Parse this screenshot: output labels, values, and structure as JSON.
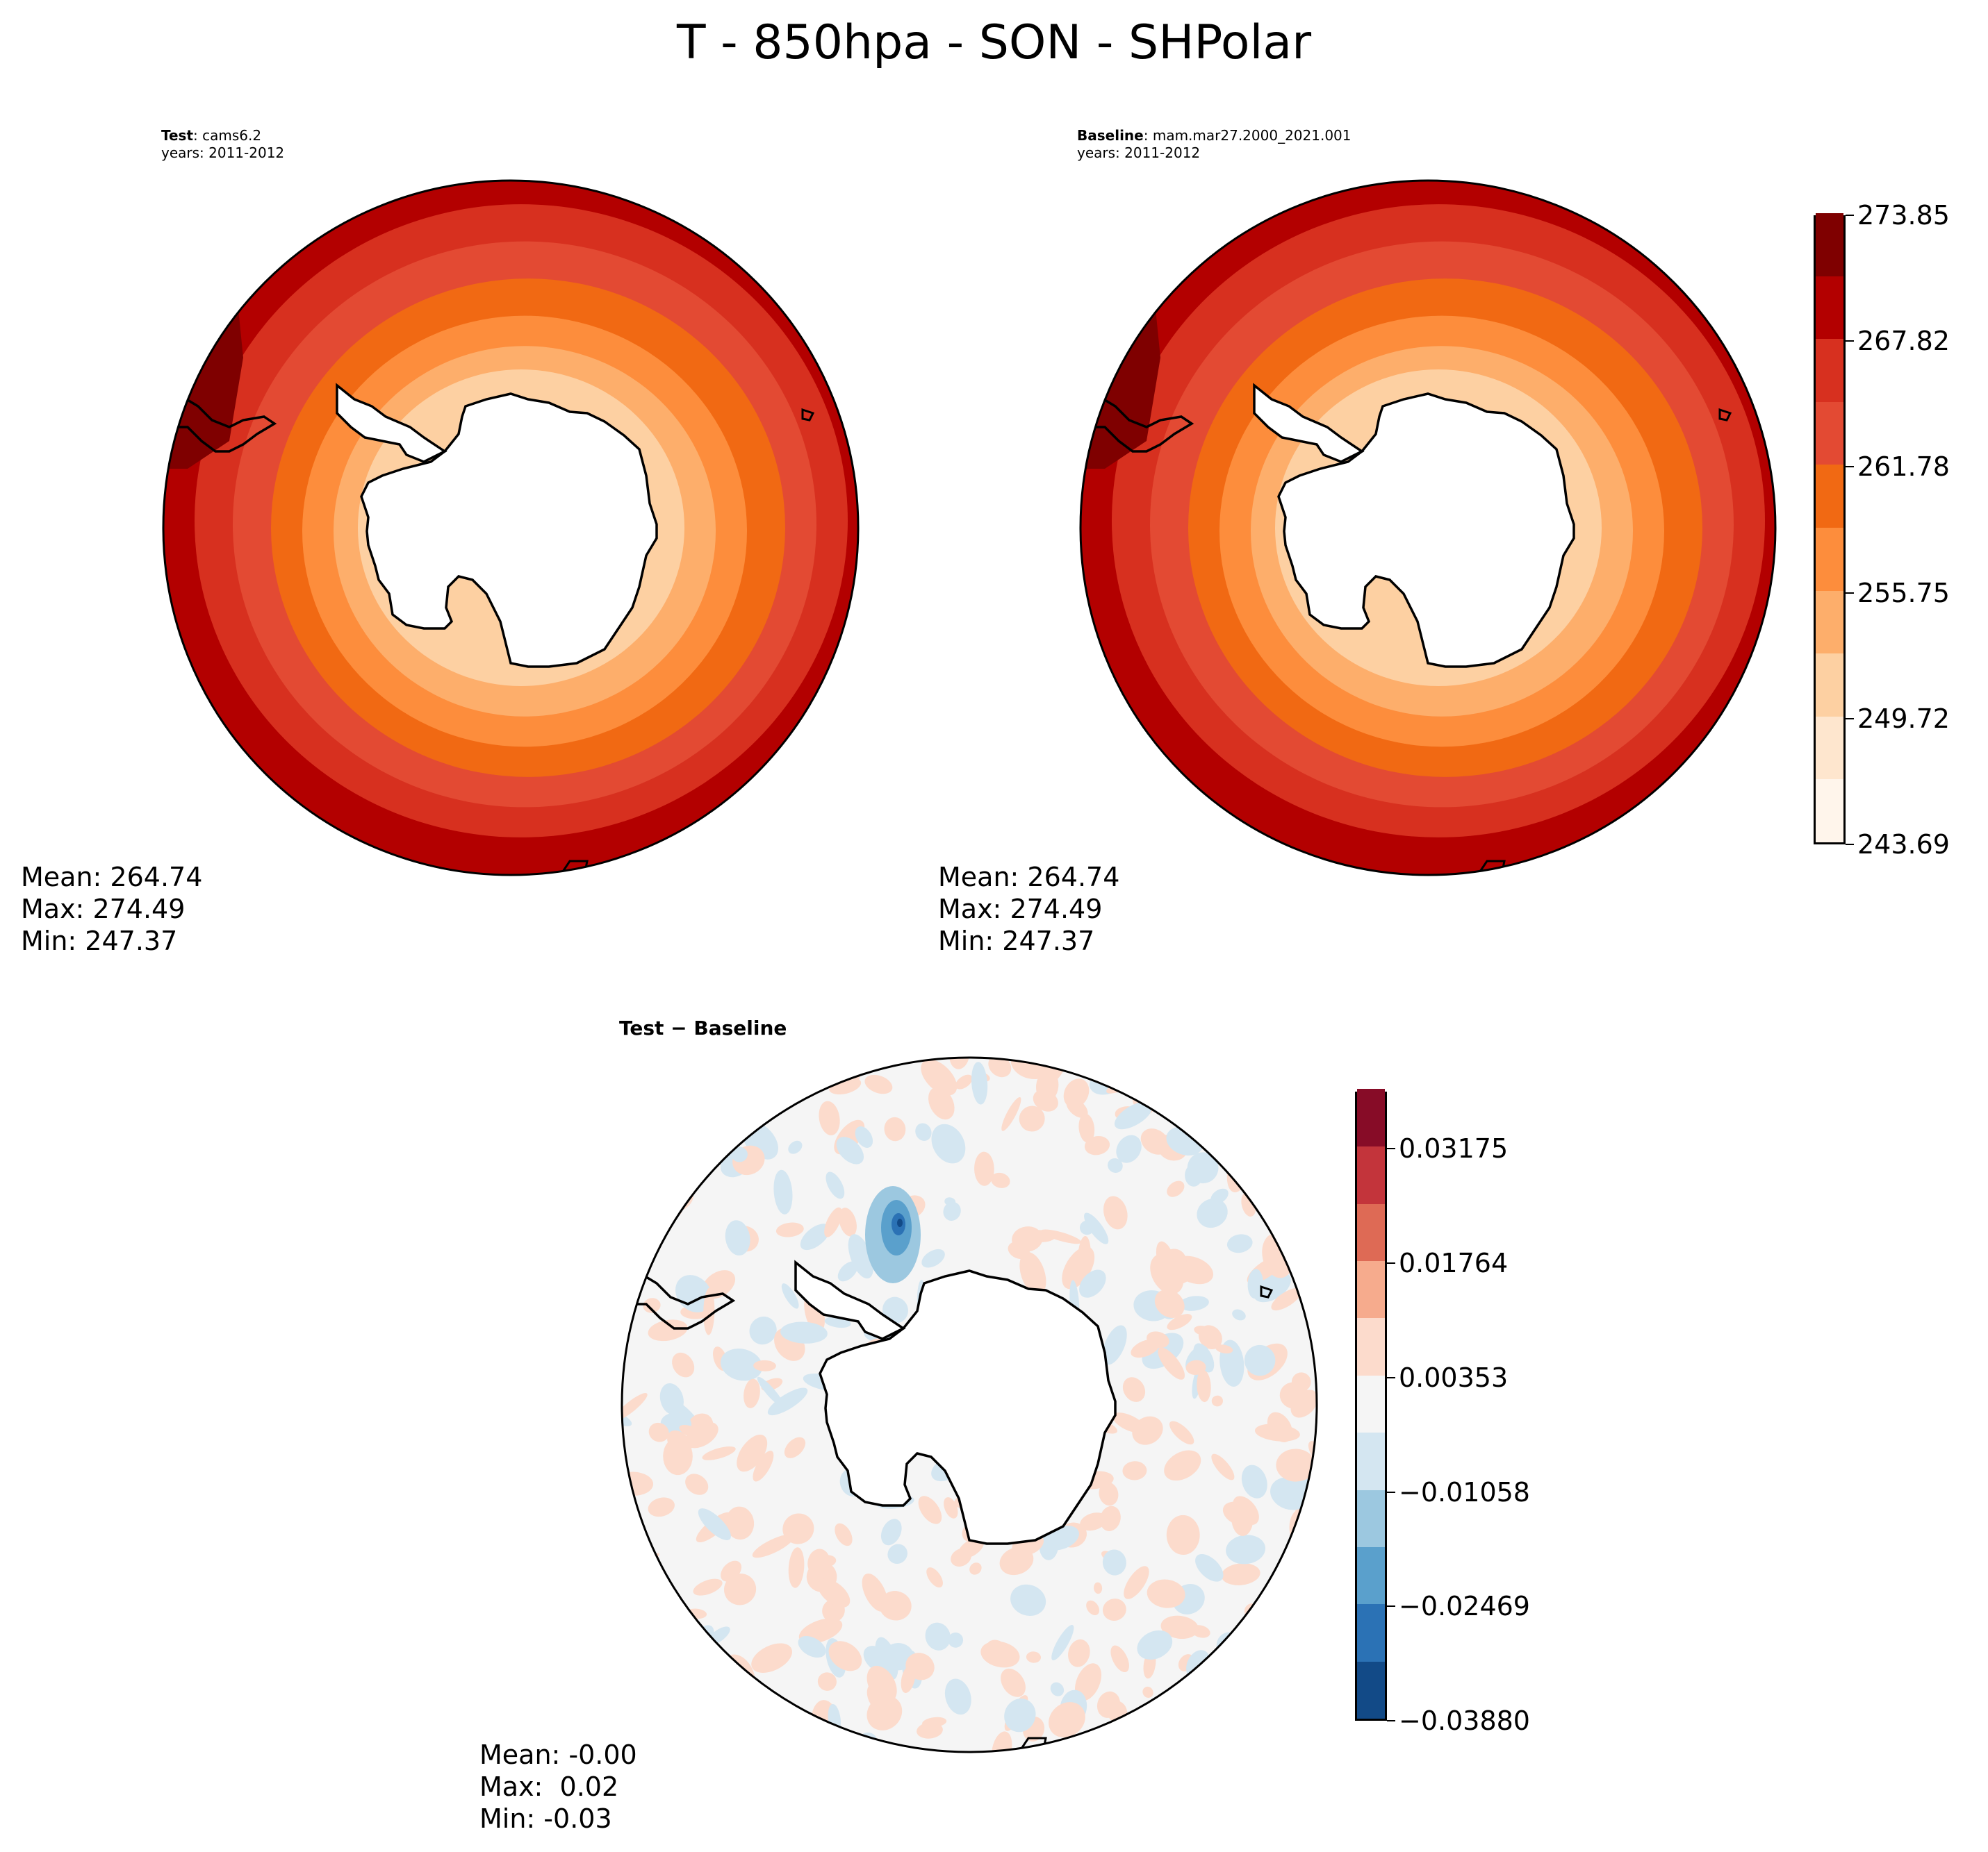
{
  "title": "T - 850hpa - SON - SHPolar",
  "panels": {
    "test": {
      "label_bold": "Test",
      "label_rest": ": cams6.2",
      "years": "years: 2011-2012",
      "stats": {
        "mean": "Mean: 264.74",
        "max": "Max: 274.49",
        "min": "Min: 247.37"
      }
    },
    "baseline": {
      "label_bold": "Baseline",
      "label_rest": ": mam.mar27.2000_2021.001",
      "years": "years: 2011-2012",
      "stats": {
        "mean": "Mean: 264.74",
        "max": "Max: 274.49",
        "min": "Min: 247.37"
      }
    },
    "diff": {
      "label_bold": "Test − Baseline",
      "stats": {
        "mean": "Mean: -0.00",
        "max": "Max:  0.02",
        "min": "Min: -0.03"
      }
    }
  },
  "colorbars": {
    "main": {
      "ticks": [
        "243.69",
        "249.72",
        "255.75",
        "261.78",
        "267.82",
        "273.85"
      ],
      "colors": [
        "#fff5eb",
        "#fee6ce",
        "#fdd0a2",
        "#fdae6b",
        "#fd8d3c",
        "#f16913",
        "#e34a33",
        "#d7301f",
        "#b30000",
        "#7f0000"
      ]
    },
    "diff": {
      "ticks": [
        "−0.03880",
        "−0.02469",
        "−0.01058",
        "0.00353",
        "0.01764",
        "0.03175"
      ],
      "colors": [
        "#124a87",
        "#2b72b5",
        "#5aa0cc",
        "#9cc8e0",
        "#d4e6f1",
        "#f5f5f5",
        "#fcdbcc",
        "#f6ab8d",
        "#de6a55",
        "#c3343b",
        "#870c27"
      ]
    }
  },
  "chart_data": [
    {
      "type": "heatmap",
      "title": "Test : cams6.2",
      "subtitle": "years: 2011-2012",
      "projection": "south polar stereographic",
      "colorbar_ticks": [
        243.69,
        249.72,
        255.75,
        261.78,
        267.82,
        273.85
      ],
      "clim": [
        243.69,
        276.86
      ],
      "stats": {
        "mean": 264.74,
        "max": 274.49,
        "min": 247.37
      }
    },
    {
      "type": "heatmap",
      "title": "Baseline : mam.mar27.2000_2021.001",
      "subtitle": "years: 2011-2012",
      "projection": "south polar stereographic",
      "colorbar_ticks": [
        243.69,
        249.72,
        255.75,
        261.78,
        267.82,
        273.85
      ],
      "clim": [
        243.69,
        276.86
      ],
      "stats": {
        "mean": 264.74,
        "max": 274.49,
        "min": 247.37
      }
    },
    {
      "type": "heatmap",
      "title": "Test − Baseline",
      "projection": "south polar stereographic",
      "colorbar_ticks": [
        -0.0388,
        -0.02469,
        -0.01058,
        0.00353,
        0.01764,
        0.03175
      ],
      "clim": [
        -0.0388,
        0.0388
      ],
      "stats": {
        "mean": -0.0,
        "max": 0.02,
        "min": -0.03
      }
    }
  ]
}
